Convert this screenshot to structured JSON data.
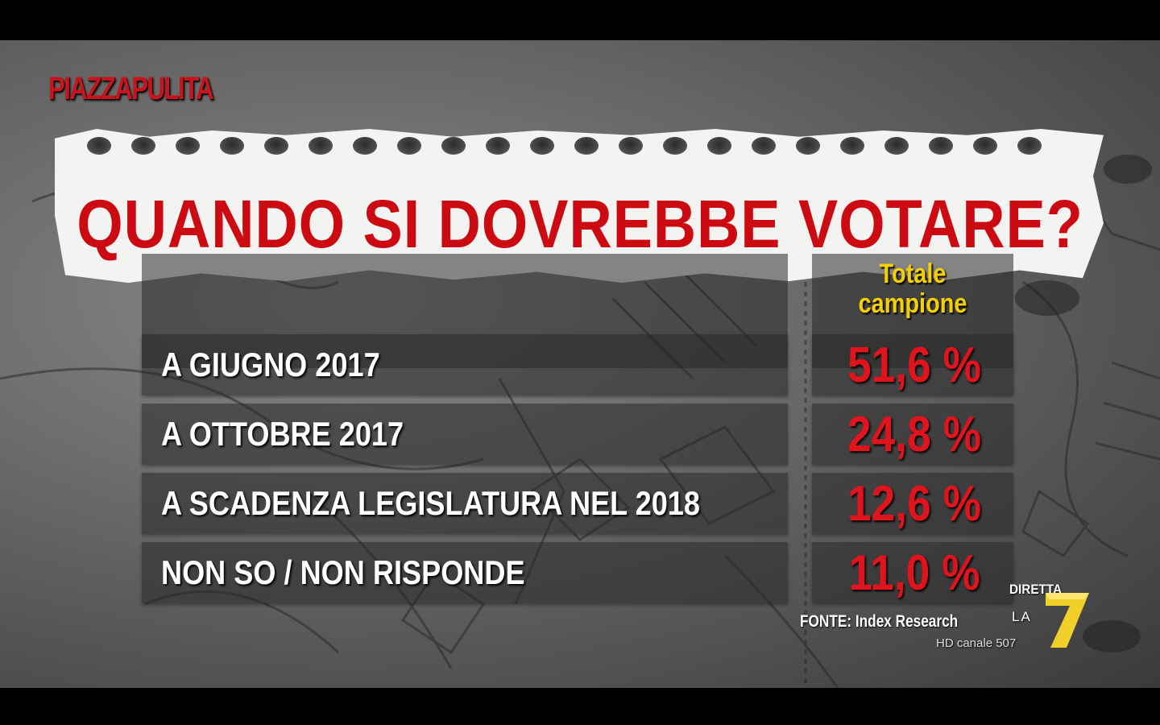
{
  "show_logo": "PIAZZAPULITA",
  "channel": {
    "live_label": "DIRETTA",
    "brand_prefix": "LA",
    "logo": "la7-seven-logo",
    "hd_label": "HD canale 507"
  },
  "chart_data": {
    "type": "table",
    "title": "QUANDO SI DOVREBBE VOTARE?",
    "column_header": "Totale\ncampione",
    "categories": [
      "A GIUGNO 2017",
      "A OTTOBRE 2017",
      "A SCADENZA LEGISLATURA NEL 2018",
      "NON SO / NON RISPONDE"
    ],
    "values": [
      51.6,
      24.8,
      12.6,
      11.0
    ],
    "value_labels": [
      "51,6 %",
      "24,8 %",
      "12,6 %",
      "11,0 %"
    ],
    "unit": "%",
    "source": "FONTE:  Index Research",
    "colors": {
      "title": "#cc0a12",
      "values": "#e0141c",
      "header": "#f5d000",
      "labels": "#ffffff"
    }
  }
}
